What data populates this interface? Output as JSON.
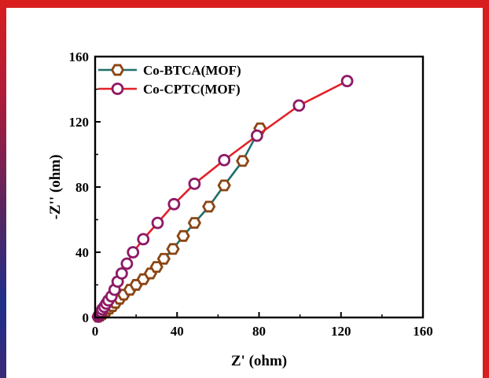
{
  "chart_data": {
    "type": "line",
    "xlabel": "Z' (ohm)",
    "ylabel": "-Z'' (ohm)",
    "xlim": [
      0,
      160
    ],
    "ylim": [
      0,
      160
    ],
    "xticks": [
      "0",
      "40",
      "80",
      "120",
      "160"
    ],
    "yticks": [
      "0",
      "40",
      "80",
      "120",
      "160"
    ],
    "grid": false,
    "legend_position": "top-left",
    "series": [
      {
        "name": "Co-BTCA(MOF)",
        "color": "#1f6f6a",
        "marker": "hexagon",
        "marker_color": "#8b4513",
        "x": [
          1.5,
          2.5,
          3.5,
          4.5,
          5.5,
          7,
          8.5,
          10,
          12,
          14,
          17,
          20,
          23.5,
          27,
          30,
          33.5,
          38,
          43,
          48.5,
          55.5,
          63,
          72,
          80.5
        ],
        "y": [
          0.5,
          1.2,
          2,
          3,
          4,
          5.5,
          7,
          9,
          11.5,
          14,
          17,
          20,
          23.5,
          27,
          31,
          36,
          42,
          50,
          58,
          68,
          81,
          96,
          116
        ]
      },
      {
        "name": "Co-CPTC(MOF)",
        "color": "#e32028",
        "marker": "circle",
        "marker_color": "#8e1a66",
        "x": [
          1.5,
          2,
          2.5,
          3,
          3.5,
          4.5,
          5.5,
          6.5,
          8,
          9.5,
          11,
          13,
          15.5,
          18.5,
          23.5,
          30.5,
          38.5,
          48.5,
          63,
          79,
          99.5,
          123
        ],
        "y": [
          0.5,
          1.5,
          2.5,
          3.5,
          5,
          6.5,
          8.5,
          10.5,
          13,
          17,
          22,
          27,
          33,
          40,
          48,
          58,
          69.5,
          82,
          96.5,
          111.5,
          130,
          145
        ]
      }
    ]
  }
}
